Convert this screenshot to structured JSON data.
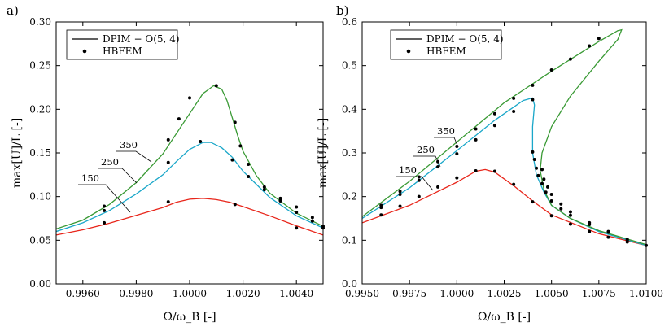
{
  "chart_data": [
    {
      "panel_label": "a)",
      "type": "line",
      "xlabel": "Ω/ω_B [-]",
      "ylabel": "max[U]/L [-]",
      "xlim": [
        0.995,
        1.005
      ],
      "ylim": [
        0.0,
        0.3
      ],
      "xticks": [
        0.996,
        0.998,
        1.0,
        1.002,
        1.004
      ],
      "xtick_labels": [
        "0.9960",
        "0.9980",
        "1.0000",
        "1.0020",
        "1.0040"
      ],
      "yticks": [
        0.0,
        0.05,
        0.1,
        0.15,
        0.2,
        0.25,
        0.3
      ],
      "ytick_labels": [
        "0.00",
        "0.05",
        "0.10",
        "0.15",
        "0.20",
        "0.25",
        "0.30"
      ],
      "legend_position": "top-left",
      "legend": [
        "DPIM − O(5, 4)",
        "HBFEM"
      ],
      "series": [
        {
          "name": "150",
          "color": "#e8261b",
          "curve": [
            [
              0.995,
              0.056
            ],
            [
              0.996,
              0.062
            ],
            [
              0.997,
              0.0695
            ],
            [
              0.998,
              0.0785
            ],
            [
              0.999,
              0.0875
            ],
            [
              0.9995,
              0.0935
            ],
            [
              1.0,
              0.097
            ],
            [
              1.0005,
              0.098
            ],
            [
              1.001,
              0.0965
            ],
            [
              1.0015,
              0.0935
            ],
            [
              1.002,
              0.0885
            ],
            [
              1.003,
              0.078
            ],
            [
              1.004,
              0.0665
            ],
            [
              1.005,
              0.056
            ]
          ],
          "points": [
            [
              0.9968,
              0.07
            ],
            [
              0.9992,
              0.094
            ],
            [
              1.0017,
              0.091
            ],
            [
              1.004,
              0.064
            ]
          ]
        },
        {
          "name": "250",
          "color": "#1aa7c9",
          "curve": [
            [
              0.995,
              0.06
            ],
            [
              0.996,
              0.07
            ],
            [
              0.997,
              0.084
            ],
            [
              0.998,
              0.103
            ],
            [
              0.999,
              0.125
            ],
            [
              0.9995,
              0.14
            ],
            [
              1.0,
              0.154
            ],
            [
              1.0005,
              0.162
            ],
            [
              1.0008,
              0.162
            ],
            [
              1.0012,
              0.156
            ],
            [
              1.0016,
              0.145
            ],
            [
              1.002,
              0.129
            ],
            [
              1.0025,
              0.114
            ],
            [
              1.003,
              0.099
            ],
            [
              1.004,
              0.078
            ],
            [
              1.005,
              0.064
            ]
          ],
          "points": [
            [
              0.9968,
              0.084
            ],
            [
              0.9992,
              0.139
            ],
            [
              1.0004,
              0.163
            ],
            [
              1.0016,
              0.142
            ],
            [
              1.0022,
              0.123
            ],
            [
              1.0028,
              0.108
            ],
            [
              1.0034,
              0.095
            ],
            [
              1.004,
              0.082
            ],
            [
              1.0046,
              0.072
            ],
            [
              1.005,
              0.064
            ]
          ]
        },
        {
          "name": "350",
          "color": "#3a9a35",
          "curve": [
            [
              0.995,
              0.063
            ],
            [
              0.996,
              0.073
            ],
            [
              0.997,
              0.091
            ],
            [
              0.998,
              0.116
            ],
            [
              0.999,
              0.149
            ],
            [
              1.0,
              0.195
            ],
            [
              1.0005,
              0.218
            ],
            [
              1.0009,
              0.227
            ],
            [
              1.0012,
              0.223
            ],
            [
              1.0014,
              0.21
            ],
            [
              1.0016,
              0.19
            ],
            [
              1.0018,
              0.17
            ],
            [
              1.002,
              0.152
            ],
            [
              1.0025,
              0.124
            ],
            [
              1.003,
              0.104
            ],
            [
              1.004,
              0.081
            ],
            [
              1.005,
              0.066
            ]
          ],
          "points": [
            [
              0.9968,
              0.089
            ],
            [
              0.9992,
              0.165
            ],
            [
              0.9996,
              0.189
            ],
            [
              1.0,
              0.213
            ],
            [
              1.001,
              0.227
            ],
            [
              1.0017,
              0.185
            ],
            [
              1.0019,
              0.158
            ],
            [
              1.0022,
              0.137
            ],
            [
              1.0028,
              0.111
            ],
            [
              1.0034,
              0.098
            ],
            [
              1.004,
              0.088
            ],
            [
              1.0046,
              0.076
            ],
            [
              1.005,
              0.066
            ]
          ]
        }
      ],
      "annotations": [
        "150",
        "250",
        "350"
      ]
    },
    {
      "panel_label": "b)",
      "type": "line",
      "xlabel": "Ω/ω_B [-]",
      "ylabel": "max[U]/L [-]",
      "xlim": [
        0.995,
        1.01
      ],
      "ylim": [
        0.0,
        0.6
      ],
      "xticks": [
        0.995,
        0.9975,
        1.0,
        1.0025,
        1.005,
        1.0075,
        1.01
      ],
      "xtick_labels": [
        "0.9950",
        "0.9975",
        "1.0000",
        "1.0025",
        "1.0050",
        "1.0075",
        "1.0100"
      ],
      "yticks": [
        0.0,
        0.1,
        0.2,
        0.3,
        0.4,
        0.5,
        0.6
      ],
      "ytick_labels": [
        "0.0",
        "0.1",
        "0.2",
        "0.3",
        "0.4",
        "0.5",
        "0.6"
      ],
      "legend_position": "top-left",
      "legend": [
        "DPIM − O(5, 4)",
        "HBFEM"
      ],
      "series": [
        {
          "name": "150",
          "color": "#e8261b",
          "curve": [
            [
              0.995,
              0.14
            ],
            [
              0.9975,
              0.18
            ],
            [
              1.0,
              0.233
            ],
            [
              1.001,
              0.258
            ],
            [
              1.0015,
              0.262
            ],
            [
              1.002,
              0.256
            ],
            [
              1.003,
              0.225
            ],
            [
              1.004,
              0.19
            ],
            [
              1.005,
              0.158
            ],
            [
              1.0075,
              0.115
            ],
            [
              1.01,
              0.088
            ]
          ],
          "points": [
            [
              0.996,
              0.158
            ],
            [
              0.997,
              0.178
            ],
            [
              0.998,
              0.2
            ],
            [
              0.999,
              0.222
            ],
            [
              1.0,
              0.243
            ],
            [
              1.001,
              0.259
            ],
            [
              1.002,
              0.258
            ],
            [
              1.003,
              0.228
            ],
            [
              1.004,
              0.188
            ],
            [
              1.005,
              0.156
            ],
            [
              1.006,
              0.137
            ],
            [
              1.007,
              0.12
            ],
            [
              1.008,
              0.107
            ],
            [
              1.009,
              0.096
            ],
            [
              1.01,
              0.088
            ]
          ]
        },
        {
          "name": "250",
          "color": "#1aa7c9",
          "curve": [
            [
              0.995,
              0.15
            ],
            [
              0.9975,
              0.22
            ],
            [
              1.0,
              0.305
            ],
            [
              1.002,
              0.375
            ],
            [
              1.0035,
              0.42
            ],
            [
              1.004,
              0.426
            ],
            [
              1.0041,
              0.41
            ],
            [
              1.004,
              0.36
            ],
            [
              1.004,
              0.3
            ],
            [
              1.0042,
              0.25
            ],
            [
              1.0046,
              0.21
            ],
            [
              1.005,
              0.18
            ],
            [
              1.006,
              0.15
            ],
            [
              1.0075,
              0.12
            ],
            [
              1.01,
              0.088
            ]
          ],
          "points": [
            [
              0.996,
              0.175
            ],
            [
              0.997,
              0.205
            ],
            [
              0.998,
              0.237
            ],
            [
              0.999,
              0.268
            ],
            [
              1.0,
              0.298
            ],
            [
              1.001,
              0.33
            ],
            [
              1.002,
              0.363
            ],
            [
              1.003,
              0.395
            ],
            [
              1.004,
              0.422
            ],
            [
              1.004,
              0.302
            ],
            [
              1.0041,
              0.285
            ],
            [
              1.0042,
              0.265
            ],
            [
              1.0043,
              0.248
            ],
            [
              1.0045,
              0.23
            ],
            [
              1.0047,
              0.21
            ],
            [
              1.005,
              0.19
            ],
            [
              1.0055,
              0.172
            ],
            [
              1.006,
              0.157
            ],
            [
              1.007,
              0.136
            ],
            [
              1.008,
              0.118
            ],
            [
              1.009,
              0.102
            ]
          ]
        },
        {
          "name": "350",
          "color": "#3a9a35",
          "curve": [
            [
              0.995,
              0.154
            ],
            [
              0.9975,
              0.235
            ],
            [
              1.0,
              0.325
            ],
            [
              1.0025,
              0.415
            ],
            [
              1.005,
              0.487
            ],
            [
              1.0075,
              0.555
            ],
            [
              1.0085,
              0.58
            ],
            [
              1.0087,
              0.582
            ],
            [
              1.0085,
              0.56
            ],
            [
              1.0075,
              0.51
            ],
            [
              1.006,
              0.43
            ],
            [
              1.005,
              0.36
            ],
            [
              1.0045,
              0.3
            ],
            [
              1.0044,
              0.26
            ],
            [
              1.0046,
              0.215
            ],
            [
              1.005,
              0.18
            ],
            [
              1.006,
              0.15
            ],
            [
              1.0075,
              0.122
            ],
            [
              1.01,
              0.09
            ]
          ],
          "points": [
            [
              0.996,
              0.18
            ],
            [
              0.997,
              0.212
            ],
            [
              0.998,
              0.245
            ],
            [
              0.999,
              0.28
            ],
            [
              1.0,
              0.315
            ],
            [
              1.001,
              0.355
            ],
            [
              1.002,
              0.39
            ],
            [
              1.003,
              0.425
            ],
            [
              1.004,
              0.455
            ],
            [
              1.005,
              0.49
            ],
            [
              1.006,
              0.515
            ],
            [
              1.007,
              0.545
            ],
            [
              1.0075,
              0.562
            ],
            [
              1.0045,
              0.262
            ],
            [
              1.0046,
              0.24
            ],
            [
              1.0048,
              0.222
            ],
            [
              1.005,
              0.205
            ],
            [
              1.0055,
              0.183
            ],
            [
              1.006,
              0.165
            ],
            [
              1.007,
              0.14
            ],
            [
              1.008,
              0.12
            ],
            [
              1.009,
              0.1
            ]
          ]
        }
      ],
      "annotations": [
        "150",
        "250",
        "350"
      ]
    }
  ]
}
